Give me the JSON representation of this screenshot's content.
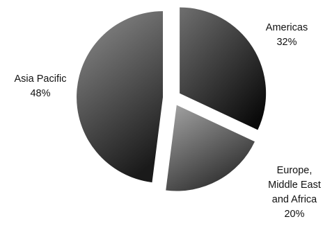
{
  "chart_data": {
    "type": "pie",
    "title": "",
    "categories": [
      "Americas",
      "Europe, Middle East and Africa",
      "Asia Pacific"
    ],
    "values": [
      32,
      20,
      48
    ],
    "labels": [
      {
        "lines": [
          "Americas"
        ],
        "value_text": "32%"
      },
      {
        "lines": [
          "Europe,",
          "Middle East",
          "and Africa"
        ],
        "value_text": "20%"
      },
      {
        "lines": [
          "Asia Pacific"
        ],
        "value_text": "48%"
      }
    ],
    "start_angle_deg": 0,
    "exploded": true,
    "legend": "none",
    "colors": {
      "americas": [
        "#6f6f6f",
        "#0a0a0a"
      ],
      "emea": [
        "#a6a6a6",
        "#2e2e2e"
      ],
      "asia_pacific": [
        "#888888",
        "#1a1a1a"
      ]
    }
  }
}
